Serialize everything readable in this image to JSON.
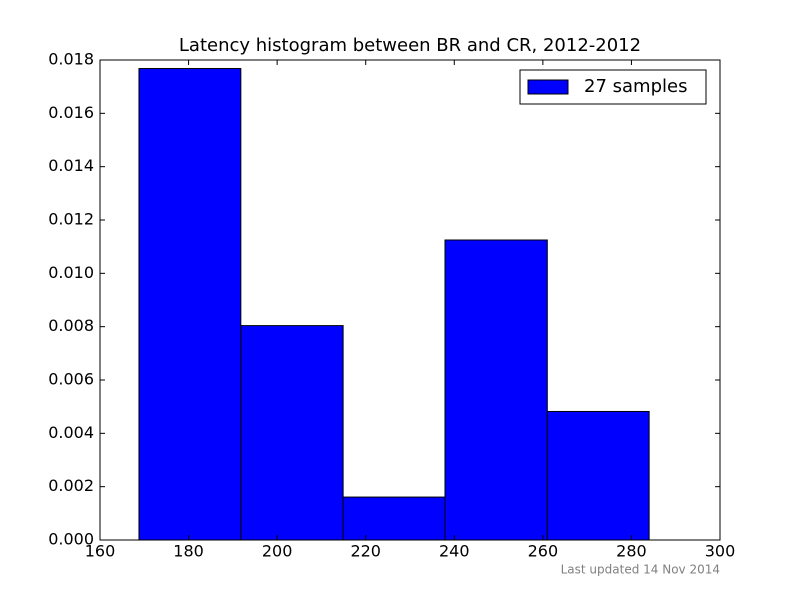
{
  "chart_data": {
    "type": "histogram",
    "title": "Latency histogram between BR and CR, 2012-2012",
    "bins": [
      168.8,
      191.8,
      214.9,
      237.9,
      261.0,
      284.0
    ],
    "values": [
      0.01768,
      0.00804,
      0.00161,
      0.01125,
      0.00482
    ],
    "color": "#0000ff",
    "legend": "27 samples",
    "legend_position": "upper right",
    "annotation": "Last updated 14 Nov 2014",
    "xlim": [
      160,
      300
    ],
    "xticks": [
      160,
      180,
      200,
      220,
      240,
      260,
      280,
      300
    ],
    "ylim": [
      0,
      0.018
    ],
    "yticks": [
      {
        "value": 0,
        "label": "0.000"
      },
      {
        "value": 0.002,
        "label": "0.002"
      },
      {
        "value": 0.004,
        "label": "0.004"
      },
      {
        "value": 0.006,
        "label": "0.006"
      },
      {
        "value": 0.008,
        "label": "0.008"
      },
      {
        "value": 0.01,
        "label": "0.010"
      },
      {
        "value": 0.012,
        "label": "0.012"
      },
      {
        "value": 0.014,
        "label": "0.014"
      },
      {
        "value": 0.016,
        "label": "0.016"
      },
      {
        "value": 0.018,
        "label": "0.018"
      }
    ]
  }
}
